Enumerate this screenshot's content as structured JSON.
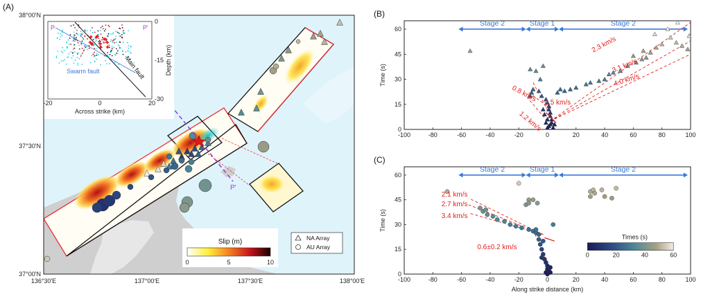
{
  "panel_a": {
    "label": "(A)",
    "lat_ticks": [
      "38°00'N",
      "37°30'N",
      "37°00'N"
    ],
    "lon_ticks": [
      "136°30'E",
      "137°00'E",
      "137°30'E",
      "138°00'E"
    ],
    "inset": {
      "corner_left": "P",
      "corner_right": "P'",
      "xlabel": "Across strike (km)",
      "x_ticks": [
        "-20",
        "0",
        "20"
      ],
      "ylabel": "Depth (km)",
      "y_ticks": [
        "0",
        "-15",
        "-30"
      ],
      "fault_main": "Main fault",
      "fault_swarm": "Swarm fault"
    },
    "profile_start": "P",
    "profile_end": "P'",
    "colorbar": {
      "title": "Slip (m)",
      "ticks": [
        "0",
        "5",
        "10"
      ]
    },
    "legend": {
      "na": "NA Array",
      "au": "AU Array"
    }
  },
  "chart_data": [
    {
      "type": "scatter",
      "panel": "(B)",
      "xlabel": "",
      "ylabel": "Time (s)",
      "xlim": [
        -100,
        100
      ],
      "ylim": [
        0,
        65
      ],
      "x_ticks": [
        -100,
        -80,
        -60,
        -40,
        -20,
        0,
        20,
        40,
        60,
        80,
        100
      ],
      "y_ticks": [
        0,
        15,
        30,
        45,
        60
      ],
      "stages": [
        "Stage 2",
        "Stage 1",
        "Stage 2"
      ],
      "stage_bounds": [
        -62,
        -15,
        8,
        98
      ],
      "velocity_labels": [
        "2.3 km/s",
        "3.1 km/s",
        "4.0 km/s",
        "0.8 km/s",
        "0.5 km/s",
        "1.2 km/s"
      ],
      "rupture_lines": [
        {
          "x0": 2,
          "t0": 5,
          "x1": 100,
          "t1": 64
        },
        {
          "x0": 2,
          "t0": 5,
          "x1": 100,
          "t1": 53
        },
        {
          "x0": 2,
          "t0": 5,
          "x1": 100,
          "t1": 45
        },
        {
          "x0": -13,
          "t0": 22,
          "x1": 3,
          "t1": 12
        },
        {
          "x0": -10,
          "t0": 28,
          "x1": 4,
          "t1": 5
        },
        {
          "x0": 0,
          "t0": 5,
          "x1": -14,
          "t1": 19
        }
      ],
      "points": [
        [
          -54,
          47
        ],
        [
          -12,
          36
        ],
        [
          -8,
          35
        ],
        [
          -3,
          38
        ],
        [
          -5,
          30
        ],
        [
          -10,
          24
        ],
        [
          -11,
          22
        ],
        [
          -12,
          20
        ],
        [
          -6,
          23
        ],
        [
          -4,
          20
        ],
        [
          -1,
          18
        ],
        [
          0,
          16
        ],
        [
          1,
          14
        ],
        [
          1,
          12
        ],
        [
          2,
          10
        ],
        [
          2,
          8
        ],
        [
          3,
          6
        ],
        [
          3,
          4
        ],
        [
          1,
          2
        ],
        [
          0,
          1
        ],
        [
          4,
          1
        ],
        [
          5,
          3
        ],
        [
          2,
          3
        ],
        [
          -1,
          4
        ],
        [
          7,
          22
        ],
        [
          9,
          24
        ],
        [
          12,
          23
        ],
        [
          16,
          24
        ],
        [
          20,
          25
        ],
        [
          27,
          27
        ],
        [
          30,
          28
        ],
        [
          36,
          29
        ],
        [
          40,
          30
        ],
        [
          43,
          33
        ],
        [
          46,
          34
        ],
        [
          51,
          35
        ],
        [
          56,
          38
        ],
        [
          62,
          40
        ],
        [
          66,
          42
        ],
        [
          69,
          43
        ],
        [
          72,
          46
        ],
        [
          76,
          49
        ],
        [
          80,
          51
        ],
        [
          86,
          55
        ],
        [
          90,
          52
        ],
        [
          94,
          50
        ],
        [
          98,
          48
        ],
        [
          99,
          56
        ],
        [
          84,
          60
        ],
        [
          75,
          57
        ],
        [
          67,
          47
        ],
        [
          60,
          44
        ],
        [
          91,
          64
        ],
        [
          0,
          6
        ],
        [
          -2,
          9
        ],
        [
          -3,
          12
        ]
      ]
    },
    {
      "type": "scatter",
      "panel": "(C)",
      "xlabel": "Along strike distance (km)",
      "ylabel": "Time (s)",
      "xlim": [
        -100,
        100
      ],
      "ylim": [
        0,
        65
      ],
      "x_ticks": [
        -100,
        -80,
        -60,
        -40,
        -20,
        0,
        20,
        40,
        60,
        80,
        100
      ],
      "y_ticks": [
        0,
        15,
        30,
        45,
        60
      ],
      "stages": [
        "Stage 2",
        "Stage 1",
        "Stage 2"
      ],
      "stage_bounds": [
        -62,
        -15,
        8,
        98
      ],
      "velocity_labels": [
        "2.1 km/s",
        "2.7 km/s",
        "3.4 km/s",
        "0.6±0.2 km/s"
      ],
      "rupture_lines": [
        {
          "x0": -3,
          "t0": 24,
          "x1": -55,
          "t1": 46
        },
        {
          "x0": -3,
          "t0": 24,
          "x1": -55,
          "t1": 42
        },
        {
          "x0": -3,
          "t0": 24,
          "x1": -55,
          "t1": 37
        },
        {
          "x0": -10,
          "t0": 27,
          "x1": 3,
          "t1": 0
        }
      ],
      "colorbar": {
        "title": "Times (s)",
        "ticks": [
          0,
          20,
          40,
          60
        ]
      },
      "points": [
        [
          -70,
          50
        ],
        [
          -47,
          40
        ],
        [
          -45,
          38
        ],
        [
          -43,
          39
        ],
        [
          -42,
          36
        ],
        [
          -38,
          35
        ],
        [
          -35,
          33
        ],
        [
          -30,
          32
        ],
        [
          -26,
          30
        ],
        [
          -22,
          29
        ],
        [
          -18,
          28
        ],
        [
          -13,
          27
        ],
        [
          -10,
          26
        ],
        [
          -8,
          25
        ],
        [
          -6,
          24
        ],
        [
          -6,
          21
        ],
        [
          -5,
          18
        ],
        [
          -4,
          15
        ],
        [
          -3,
          12
        ],
        [
          -2,
          9
        ],
        [
          -1,
          7
        ],
        [
          0,
          5
        ],
        [
          0,
          3
        ],
        [
          1,
          2
        ],
        [
          2,
          1
        ],
        [
          0,
          0
        ],
        [
          -1,
          1
        ],
        [
          2,
          4
        ],
        [
          4,
          30
        ],
        [
          -20,
          55
        ],
        [
          -15,
          42
        ],
        [
          -13,
          45
        ],
        [
          -10,
          45
        ],
        [
          -7,
          43
        ],
        [
          -13,
          43
        ],
        [
          30,
          50
        ],
        [
          32,
          51
        ],
        [
          33,
          49
        ],
        [
          30,
          47
        ],
        [
          38,
          51
        ],
        [
          40,
          47
        ],
        [
          45,
          46
        ],
        [
          48,
          52
        ],
        [
          -4,
          10
        ],
        [
          -3,
          20
        ],
        [
          -8,
          27
        ]
      ]
    }
  ]
}
